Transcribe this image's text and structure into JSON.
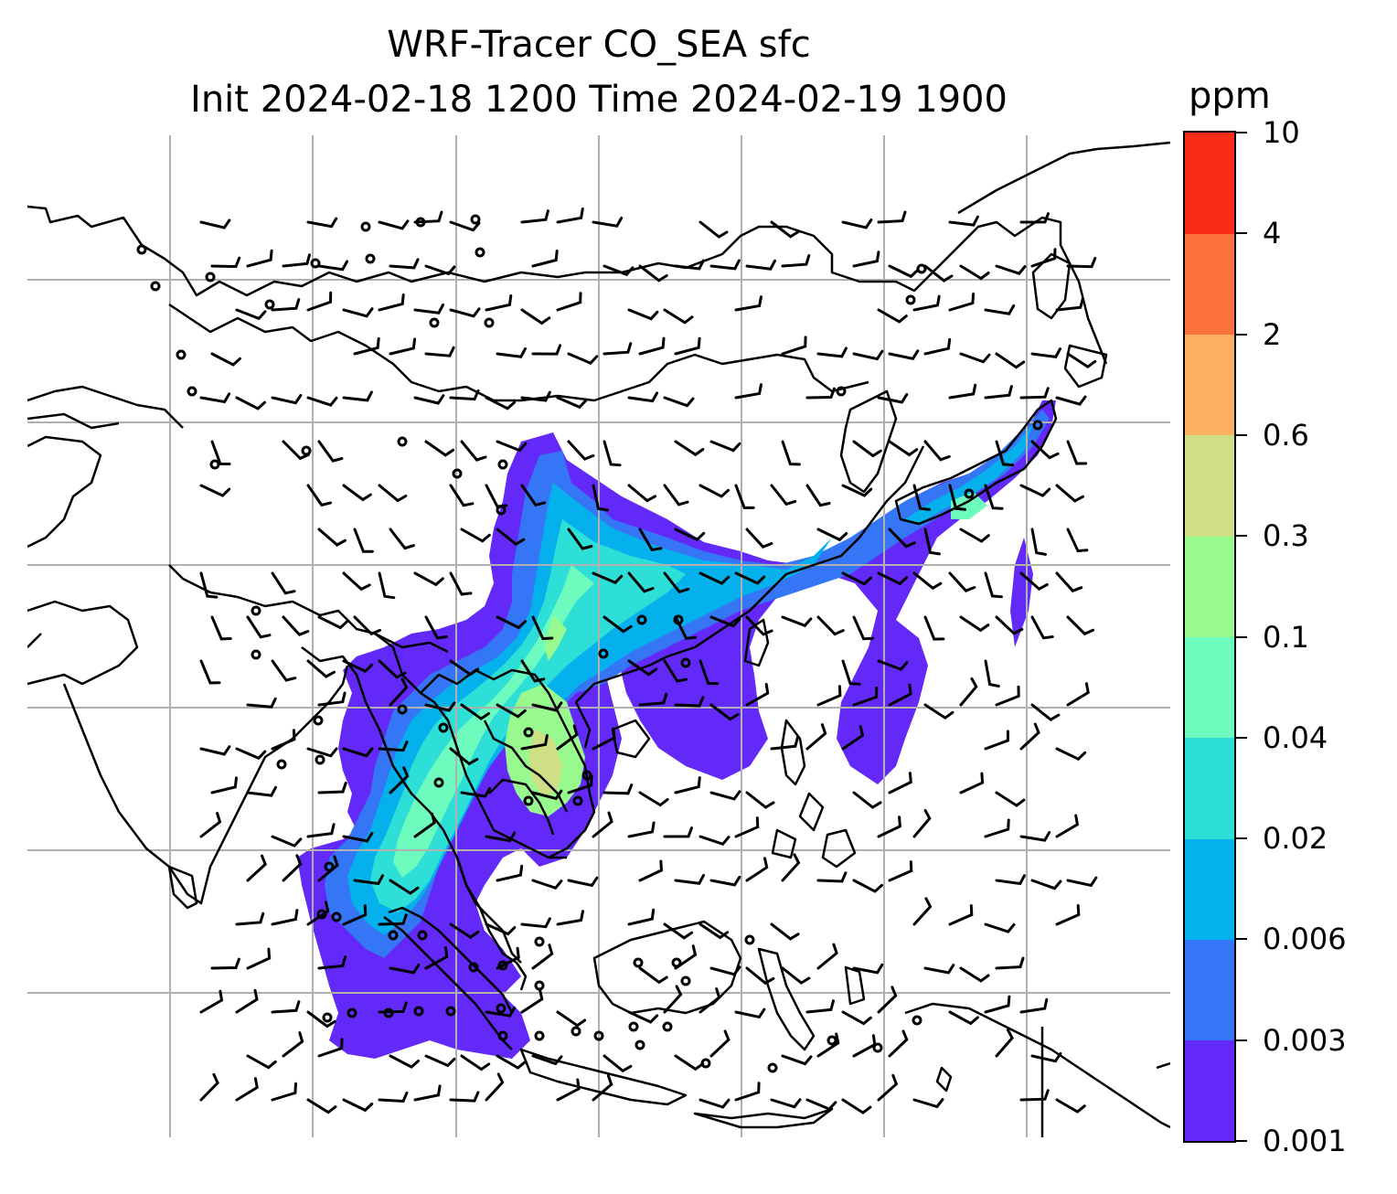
{
  "title": {
    "line1": "WRF-Tracer CO_SEA sfc",
    "line2": "Init 2024-02-18 1200 Time 2024-02-19 1900"
  },
  "colorbar": {
    "unit": "ppm",
    "levels": [
      "0.001",
      "0.003",
      "0.006",
      "0.02",
      "0.04",
      "0.1",
      "0.3",
      "0.6",
      "2",
      "4",
      "10"
    ],
    "colors": [
      "#6329f8",
      "#3476f5",
      "#05b1ec",
      "#2ddfd6",
      "#6dfcbd",
      "#98f98f",
      "#cfdf85",
      "#fbb062",
      "#fc723f",
      "#fa2b17"
    ]
  },
  "map": {
    "gridlines": true,
    "coastline_color": "#000000",
    "gridline_color": "#b0b0b0",
    "field": "CO_SEA surface tracer concentration with wind barbs"
  }
}
